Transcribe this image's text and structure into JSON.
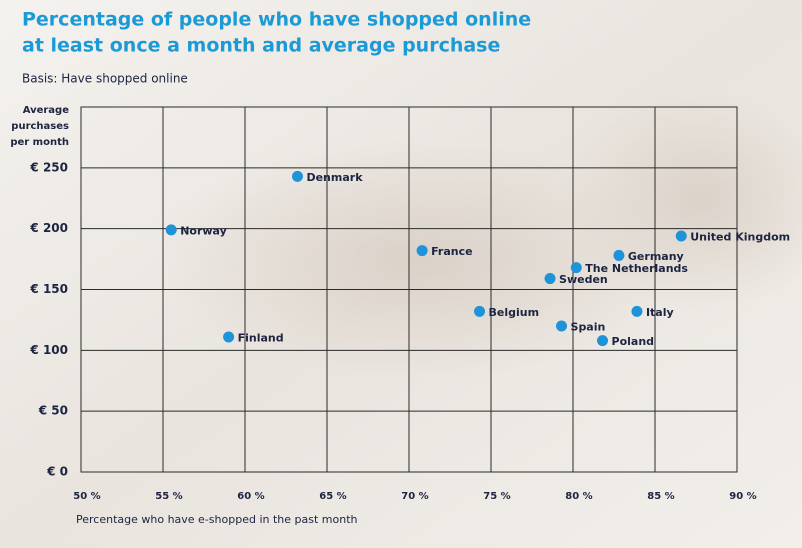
{
  "chart_data": {
    "type": "scatter",
    "title": [
      "Percentage of people who have shopped online",
      "at least once a month and average purchase"
    ],
    "subtitle": "Basis: Have shopped online",
    "y_label": [
      "Average",
      "purchases",
      "per month"
    ],
    "x_label": "Percentage who have e-shopped in the past month",
    "color": "#1e93d8",
    "points": [
      {
        "name": "Denmark",
        "x": 63.2,
        "y": 243
      },
      {
        "name": "Norway",
        "x": 55.5,
        "y": 199
      },
      {
        "name": "France",
        "x": 70.8,
        "y": 182
      },
      {
        "name": "United Kingdom",
        "x": 86.6,
        "y": 194
      },
      {
        "name": "Germany",
        "x": 82.8,
        "y": 178
      },
      {
        "name": "The Netherlands",
        "x": 80.2,
        "y": 168
      },
      {
        "name": "Sweden",
        "x": 78.6,
        "y": 159
      },
      {
        "name": "Belgium",
        "x": 74.3,
        "y": 132
      },
      {
        "name": "Italy",
        "x": 83.9,
        "y": 132
      },
      {
        "name": "Spain",
        "x": 79.3,
        "y": 120
      },
      {
        "name": "Finland",
        "x": 59.0,
        "y": 111
      },
      {
        "name": "Poland",
        "x": 81.8,
        "y": 108
      }
    ],
    "xlim": [
      50,
      90
    ],
    "xticks": [
      {
        "value": 50,
        "label": "50 %"
      },
      {
        "value": 55,
        "label": "55 %"
      },
      {
        "value": 60,
        "label": "60 %"
      },
      {
        "value": 65,
        "label": "65 %"
      },
      {
        "value": 70,
        "label": "70 %"
      },
      {
        "value": 75,
        "label": "75 %"
      },
      {
        "value": 80,
        "label": "80 %"
      },
      {
        "value": 85,
        "label": "85 %"
      },
      {
        "value": 90,
        "label": "90 %"
      }
    ],
    "ylim": [
      0,
      300
    ],
    "yticks": [
      {
        "value": 0,
        "label": "€ 0"
      },
      {
        "value": 50,
        "label": "€ 50"
      },
      {
        "value": 100,
        "label": "€ 100"
      },
      {
        "value": 150,
        "label": "€ 150"
      },
      {
        "value": 200,
        "label": "€ 200"
      },
      {
        "value": 250,
        "label": "€ 250"
      }
    ],
    "grid": true
  }
}
